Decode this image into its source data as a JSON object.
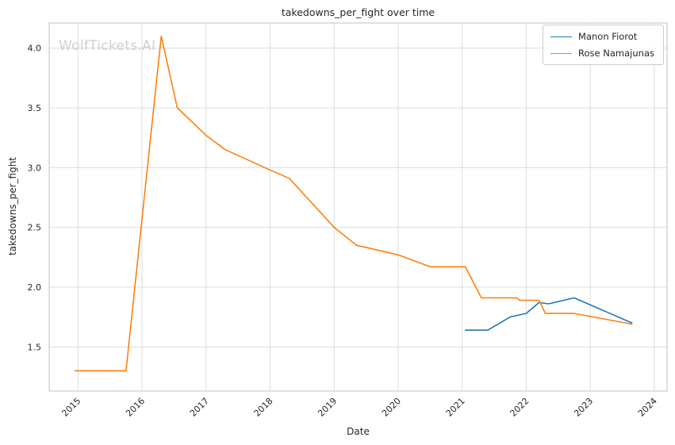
{
  "title": "takedowns_per_fight over time",
  "watermark": "WolfTickets.AI",
  "axes": {
    "x_label": "Date",
    "y_label": "takedowns_per_fight"
  },
  "legend": {
    "entries": [
      {
        "label": "Manon Fiorot",
        "color": "#1f77b4"
      },
      {
        "label": "Rose Namajunas",
        "color": "#ff7f0e"
      }
    ]
  },
  "chart_data": {
    "type": "line",
    "title": "takedowns_per_fight over time",
    "xlabel": "Date",
    "ylabel": "takedowns_per_fight",
    "xlim": [
      2014.55,
      2024.2
    ],
    "ylim": [
      1.13,
      4.21
    ],
    "x_ticks": [
      2015,
      2016,
      2017,
      2018,
      2019,
      2020,
      2021,
      2022,
      2023,
      2024
    ],
    "y_ticks": [
      1.5,
      2.0,
      2.5,
      3.0,
      3.5,
      4.0
    ],
    "grid": true,
    "legend_position": "upper right",
    "series": [
      {
        "name": "Manon Fiorot",
        "color": "#1f77b4",
        "x": [
          2021.05,
          2021.4,
          2021.75,
          2022.0,
          2022.2,
          2022.35,
          2022.75,
          2023.65
        ],
        "y": [
          1.64,
          1.64,
          1.75,
          1.78,
          1.87,
          1.86,
          1.91,
          1.7
        ]
      },
      {
        "name": "Rose Namajunas",
        "color": "#ff7f0e",
        "x": [
          2014.95,
          2015.3,
          2015.75,
          2016.3,
          2016.55,
          2016.65,
          2017.0,
          2017.3,
          2018.0,
          2018.3,
          2019.0,
          2019.35,
          2020.0,
          2020.5,
          2021.05,
          2021.3,
          2021.85,
          2021.9,
          2022.2,
          2022.3,
          2022.75,
          2023.65
        ],
        "y": [
          1.3,
          1.3,
          1.3,
          4.1,
          3.5,
          3.45,
          3.27,
          3.15,
          2.98,
          2.91,
          2.5,
          2.35,
          2.27,
          2.17,
          2.17,
          1.91,
          1.91,
          1.89,
          1.89,
          1.78,
          1.78,
          1.69
        ]
      }
    ]
  }
}
